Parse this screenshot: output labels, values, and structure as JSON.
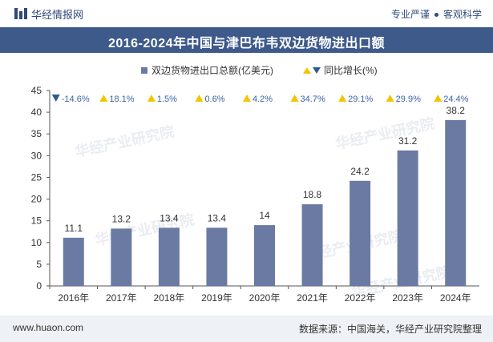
{
  "header": {
    "brand": "华经情报网",
    "tagline_left": "专业严谨",
    "tagline_right": "客观科学"
  },
  "title": "2016-2024年中国与津巴布韦双边货物进出口额",
  "footer": {
    "website": "www.huaon.com",
    "source": "数据来源：中国海关，华经产业研究院整理"
  },
  "watermark": "华经产业研究院",
  "colors": {
    "bar": "#6b7aa3",
    "up": "#f5c400",
    "down": "#2f5a8f",
    "growth_text": "#3b63a8",
    "title_bg": "#3e5a8b"
  },
  "chart_data": {
    "type": "bar",
    "title": "2016-2024年中国与津巴布韦双边货物进出口额",
    "categories": [
      "2016年",
      "2017年",
      "2018年",
      "2019年",
      "2020年",
      "2021年",
      "2022年",
      "2023年",
      "2024年"
    ],
    "series": [
      {
        "name": "双边货物进出口总额(亿美元)",
        "values": [
          11.1,
          13.2,
          13.4,
          13.4,
          14,
          18.8,
          24.2,
          31.2,
          38.2
        ]
      }
    ],
    "value_labels": [
      "11.1",
      "13.2",
      "13.4",
      "13.4",
      "14",
      "18.8",
      "24.2",
      "31.2",
      "38.2"
    ],
    "growth": {
      "name": "同比增长(%)",
      "values": [
        -14.6,
        18.1,
        1.5,
        0.6,
        4.2,
        34.7,
        29.1,
        29.9,
        24.4
      ],
      "labels": [
        "-14.6%",
        "18.1%",
        "1.5%",
        "0.6%",
        "4.2%",
        "34.7%",
        "29.1%",
        "29.9%",
        "24.4%"
      ]
    },
    "ylim": [
      0,
      45
    ],
    "yticks": [
      0,
      5,
      10,
      15,
      20,
      25,
      30,
      35,
      40,
      45
    ],
    "xlabel": "",
    "ylabel": "",
    "legend_position": "top-center",
    "grid": false
  }
}
